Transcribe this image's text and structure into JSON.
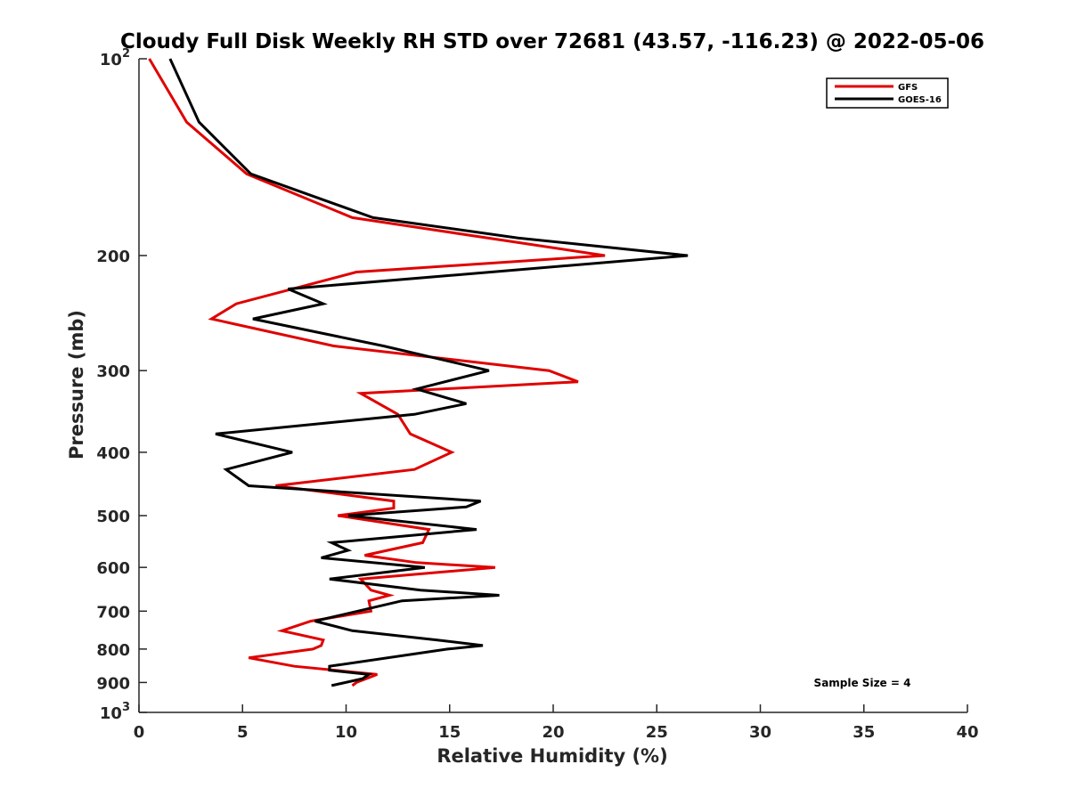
{
  "chart_data": {
    "type": "line",
    "title": "Cloudy Full Disk Weekly RH STD over 72681 (43.57, -116.23) @ 2022-05-06",
    "xlabel": "Relative Humidity (%)",
    "ylabel": "Pressure (mb)",
    "xlim": [
      0,
      40
    ],
    "ylim": [
      100,
      1000
    ],
    "y_scale": "log",
    "y_reversed": true,
    "x_ticks": [
      "0",
      "5",
      "10",
      "15",
      "20",
      "25",
      "30",
      "35",
      "40"
    ],
    "y_ticks": [
      {
        "value": 100,
        "label": "10",
        "sup": "2"
      },
      {
        "value": 200,
        "label": "200",
        "sup": ""
      },
      {
        "value": 300,
        "label": "300",
        "sup": ""
      },
      {
        "value": 400,
        "label": "400",
        "sup": ""
      },
      {
        "value": 500,
        "label": "500",
        "sup": ""
      },
      {
        "value": 600,
        "label": "600",
        "sup": ""
      },
      {
        "value": 700,
        "label": "700",
        "sup": ""
      },
      {
        "value": 800,
        "label": "800",
        "sup": ""
      },
      {
        "value": 900,
        "label": "900",
        "sup": ""
      },
      {
        "value": 1000,
        "label": "10",
        "sup": "3"
      }
    ],
    "grid": false,
    "legend_position": "top-right",
    "annotation": "Sample Size = 4",
    "series": [
      {
        "name": "GFS",
        "color": "#e00000",
        "points": [
          [
            0.5,
            100
          ],
          [
            2.3,
            125
          ],
          [
            5.2,
            150
          ],
          [
            10.3,
            175
          ],
          [
            22.5,
            200
          ],
          [
            10.5,
            212
          ],
          [
            4.7,
            237
          ],
          [
            3.5,
            250
          ],
          [
            9.4,
            275
          ],
          [
            19.8,
            300
          ],
          [
            21.2,
            312
          ],
          [
            10.7,
            325
          ],
          [
            12.5,
            350
          ],
          [
            13.1,
            375
          ],
          [
            15.1,
            400
          ],
          [
            13.3,
            425
          ],
          [
            6.6,
            450
          ],
          [
            12.3,
            475
          ],
          [
            12.3,
            487
          ],
          [
            9.6,
            500
          ],
          [
            14.0,
            525
          ],
          [
            13.7,
            550
          ],
          [
            10.9,
            575
          ],
          [
            13.4,
            590
          ],
          [
            17.2,
            600
          ],
          [
            10.7,
            625
          ],
          [
            11.2,
            650
          ],
          [
            12.1,
            662
          ],
          [
            11.1,
            675
          ],
          [
            11.2,
            700
          ],
          [
            8.3,
            725
          ],
          [
            6.9,
            750
          ],
          [
            8.9,
            775
          ],
          [
            8.8,
            790
          ],
          [
            8.4,
            800
          ],
          [
            5.3,
            825
          ],
          [
            7.5,
            850
          ],
          [
            11.5,
            875
          ],
          [
            10.5,
            900
          ],
          [
            10.3,
            910
          ]
        ]
      },
      {
        "name": "GOES-16",
        "color": "#000000",
        "points": [
          [
            1.5,
            100
          ],
          [
            2.9,
            125
          ],
          [
            5.4,
            150
          ],
          [
            11.3,
            175
          ],
          [
            18.3,
            188
          ],
          [
            26.5,
            200
          ],
          [
            7.2,
            225
          ],
          [
            8.9,
            237
          ],
          [
            5.5,
            250
          ],
          [
            11.8,
            275
          ],
          [
            16.9,
            300
          ],
          [
            13.4,
            320
          ],
          [
            15.8,
            337
          ],
          [
            13.3,
            350
          ],
          [
            3.7,
            375
          ],
          [
            7.4,
            400
          ],
          [
            4.2,
            425
          ],
          [
            5.3,
            450
          ],
          [
            16.5,
            475
          ],
          [
            15.8,
            485
          ],
          [
            10.1,
            500
          ],
          [
            16.3,
            525
          ],
          [
            9.3,
            550
          ],
          [
            10.1,
            565
          ],
          [
            8.8,
            580
          ],
          [
            13.8,
            600
          ],
          [
            9.2,
            625
          ],
          [
            13.6,
            650
          ],
          [
            17.4,
            662
          ],
          [
            12.7,
            675
          ],
          [
            8.5,
            725
          ],
          [
            10.3,
            750
          ],
          [
            14.4,
            775
          ],
          [
            16.6,
            790
          ],
          [
            14.9,
            800
          ],
          [
            9.2,
            850
          ],
          [
            9.2,
            862
          ],
          [
            11.1,
            875
          ],
          [
            10.8,
            888
          ],
          [
            9.3,
            910
          ]
        ]
      }
    ]
  }
}
